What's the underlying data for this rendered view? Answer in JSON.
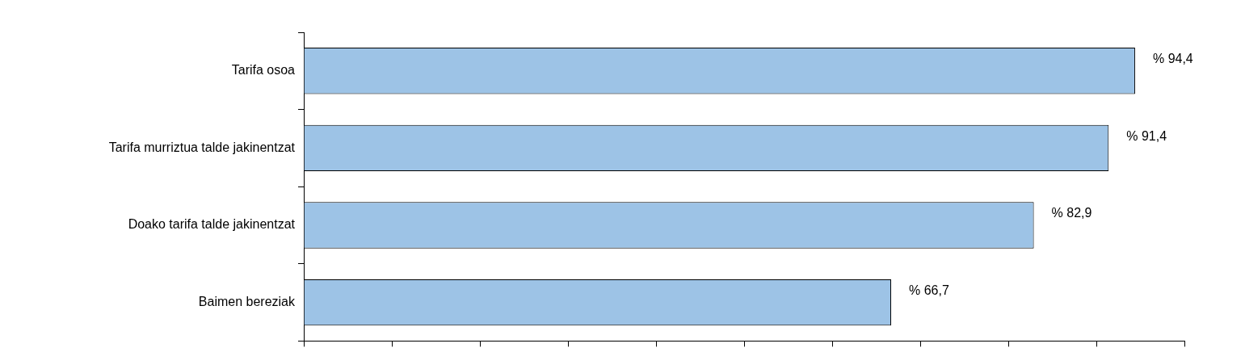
{
  "chart_data": {
    "type": "bar",
    "orientation": "horizontal",
    "categories": [
      "Tarifa osoa",
      "Tarifa murriztua talde jakinentzat",
      "Doako tarifa talde jakinentzat",
      "Baimen bereziak"
    ],
    "values": [
      94.4,
      91.4,
      82.9,
      66.7
    ],
    "color": "#9dc3e6",
    "value_labels": [
      "% 94,4",
      "% 91,4",
      "% 82,9",
      "% 66,7"
    ],
    "xlim": [
      0,
      100
    ],
    "xticks": [
      {
        "value": 0,
        "label": null
      },
      {
        "value": 10,
        "label": null
      },
      {
        "value": 20,
        "label": null
      },
      {
        "value": 30,
        "label": null
      },
      {
        "value": 40,
        "label": null
      },
      {
        "value": 50,
        "label": null
      },
      {
        "value": 60,
        "label": null
      },
      {
        "value": 70,
        "label": null
      },
      {
        "value": 80,
        "label": null
      },
      {
        "value": 90,
        "label": null
      },
      {
        "value": 100,
        "label": null
      }
    ],
    "tick_labels": "y"
  }
}
